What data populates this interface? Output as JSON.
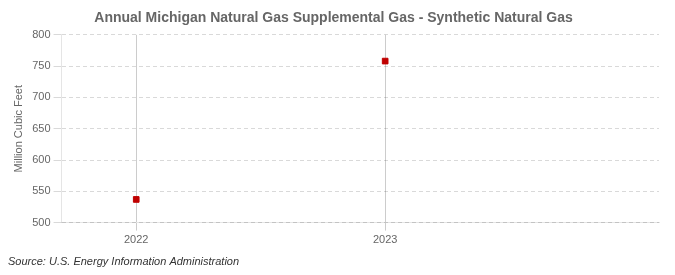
{
  "chart_data": {
    "type": "scatter",
    "title": "Annual Michigan Natural Gas Supplemental Gas - Synthetic Natural Gas",
    "ylabel": "Million Cubic Feet",
    "source": "Source: U.S. Energy Information Administration",
    "x": [
      2022,
      2023
    ],
    "values": [
      537,
      758
    ],
    "color": "#c00000",
    "marker": "square",
    "xlim": [
      2021.7,
      2024.1
    ],
    "ylim": [
      500,
      800
    ],
    "xticks": [
      2022,
      2023
    ],
    "yticks": [
      500,
      550,
      600,
      650,
      700,
      750,
      800
    ],
    "grid": true
  }
}
